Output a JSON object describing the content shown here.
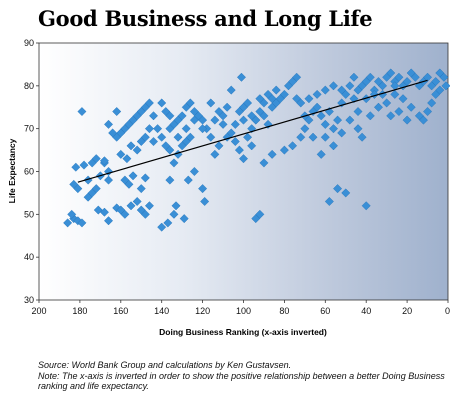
{
  "chart_data": {
    "type": "scatter",
    "title": "Good Business and Long Life",
    "xlabel": "Doing Business Ranking (x-axis inverted)",
    "ylabel": "Life Expectancy",
    "xlim": [
      200,
      0
    ],
    "ylim": [
      30,
      90
    ],
    "x_ticks": [
      200,
      180,
      160,
      140,
      120,
      100,
      80,
      60,
      40,
      20,
      0
    ],
    "y_ticks": [
      30,
      40,
      50,
      60,
      70,
      80,
      90
    ],
    "x_inverted": true,
    "grid": false,
    "background": "gradient-white-to-blue",
    "marker": "diamond",
    "marker_color": "#3a8fd6",
    "trendline": {
      "x": [
        181,
        10
      ],
      "y": [
        57.5,
        81.3
      ],
      "color": "#000000"
    },
    "points": [
      [
        186,
        48
      ],
      [
        183,
        49
      ],
      [
        181,
        48.5
      ],
      [
        179,
        48
      ],
      [
        184,
        50
      ],
      [
        181,
        56
      ],
      [
        176,
        54
      ],
      [
        174,
        55
      ],
      [
        171,
        51
      ],
      [
        168,
        50.5
      ],
      [
        166,
        48.5
      ],
      [
        176,
        58
      ],
      [
        172,
        56
      ],
      [
        170,
        59
      ],
      [
        168,
        62
      ],
      [
        166,
        60
      ],
      [
        182,
        61
      ],
      [
        178,
        61.5
      ],
      [
        174,
        62
      ],
      [
        172,
        63
      ],
      [
        183,
        57
      ],
      [
        179,
        74
      ],
      [
        168,
        62.5
      ],
      [
        166,
        58
      ],
      [
        162,
        51.5
      ],
      [
        160,
        51
      ],
      [
        158,
        50
      ],
      [
        155,
        52
      ],
      [
        152,
        53
      ],
      [
        150,
        51
      ],
      [
        148,
        50
      ],
      [
        146,
        52
      ],
      [
        158,
        58
      ],
      [
        156,
        57
      ],
      [
        154,
        59
      ],
      [
        150,
        56
      ],
      [
        148,
        58.5
      ],
      [
        160,
        64
      ],
      [
        157,
        63
      ],
      [
        155,
        66
      ],
      [
        152,
        65
      ],
      [
        150,
        67
      ],
      [
        148,
        68
      ],
      [
        146,
        70
      ],
      [
        144,
        73
      ],
      [
        162,
        68
      ],
      [
        160,
        69
      ],
      [
        158,
        70
      ],
      [
        156,
        71
      ],
      [
        154,
        72
      ],
      [
        164,
        69
      ],
      [
        166,
        71
      ],
      [
        162,
        74
      ],
      [
        152,
        73
      ],
      [
        150,
        74
      ],
      [
        148,
        75
      ],
      [
        146,
        76
      ],
      [
        140,
        76
      ],
      [
        138,
        74
      ],
      [
        136,
        73
      ],
      [
        134,
        71
      ],
      [
        132,
        72
      ],
      [
        130,
        73
      ],
      [
        128,
        75
      ],
      [
        126,
        76
      ],
      [
        124,
        74
      ],
      [
        122,
        73
      ],
      [
        120,
        72
      ],
      [
        118,
        70
      ],
      [
        116,
        68
      ],
      [
        114,
        72
      ],
      [
        112,
        74
      ],
      [
        110,
        73
      ],
      [
        108,
        75
      ],
      [
        106,
        79
      ],
      [
        140,
        47
      ],
      [
        137,
        48
      ],
      [
        134,
        50
      ],
      [
        133,
        52
      ],
      [
        129,
        49
      ],
      [
        127,
        58
      ],
      [
        124,
        60
      ],
      [
        120,
        56
      ],
      [
        119,
        53
      ],
      [
        136,
        58
      ],
      [
        134,
        62
      ],
      [
        132,
        64
      ],
      [
        130,
        66
      ],
      [
        128,
        67
      ],
      [
        126,
        68
      ],
      [
        140,
        68
      ],
      [
        138,
        66
      ],
      [
        136,
        65
      ],
      [
        142,
        70
      ],
      [
        144,
        67
      ],
      [
        104,
        67
      ],
      [
        102,
        65
      ],
      [
        100,
        63
      ],
      [
        98,
        68
      ],
      [
        96,
        70
      ],
      [
        94,
        72
      ],
      [
        92,
        74
      ],
      [
        90,
        73
      ],
      [
        88,
        71
      ],
      [
        86,
        75
      ],
      [
        84,
        76
      ],
      [
        82,
        77
      ],
      [
        80,
        78
      ],
      [
        78,
        80
      ],
      [
        76,
        81
      ],
      [
        74,
        82
      ],
      [
        102,
        74
      ],
      [
        100,
        75
      ],
      [
        98,
        76
      ],
      [
        96,
        73
      ],
      [
        94,
        72
      ],
      [
        92,
        77
      ],
      [
        90,
        76
      ],
      [
        88,
        78
      ],
      [
        86,
        77
      ],
      [
        84,
        79
      ],
      [
        101,
        82
      ],
      [
        70,
        73
      ],
      [
        68,
        72
      ],
      [
        66,
        74
      ],
      [
        64,
        75
      ],
      [
        62,
        73
      ],
      [
        60,
        71
      ],
      [
        58,
        74
      ],
      [
        56,
        70
      ],
      [
        54,
        72
      ],
      [
        52,
        76
      ],
      [
        50,
        78
      ],
      [
        48,
        80
      ],
      [
        46,
        77
      ],
      [
        44,
        74
      ],
      [
        42,
        80
      ],
      [
        40,
        81
      ],
      [
        38,
        82
      ],
      [
        36,
        79
      ],
      [
        34,
        81
      ],
      [
        32,
        80
      ],
      [
        30,
        82
      ],
      [
        28,
        83
      ],
      [
        26,
        81
      ],
      [
        24,
        82
      ],
      [
        22,
        80
      ],
      [
        20,
        81
      ],
      [
        18,
        83
      ],
      [
        16,
        82
      ],
      [
        14,
        80
      ],
      [
        12,
        81
      ],
      [
        10,
        82
      ],
      [
        8,
        80
      ],
      [
        6,
        81
      ],
      [
        4,
        83
      ],
      [
        2,
        82
      ],
      [
        1,
        80
      ],
      [
        80,
        65
      ],
      [
        76,
        66
      ],
      [
        72,
        68
      ],
      [
        70,
        70
      ],
      [
        66,
        68
      ],
      [
        62,
        64
      ],
      [
        58,
        53
      ],
      [
        54,
        56
      ],
      [
        50,
        55
      ],
      [
        40,
        52
      ],
      [
        94,
        49
      ],
      [
        92,
        50
      ],
      [
        90,
        62
      ],
      [
        86,
        64
      ],
      [
        60,
        68
      ],
      [
        56,
        66
      ],
      [
        52,
        69
      ],
      [
        48,
        72
      ],
      [
        44,
        70
      ],
      [
        42,
        68
      ],
      [
        38,
        73
      ],
      [
        34,
        75
      ],
      [
        30,
        76
      ],
      [
        26,
        78
      ],
      [
        22,
        77
      ],
      [
        18,
        75
      ],
      [
        14,
        73
      ],
      [
        10,
        74
      ],
      [
        6,
        78
      ],
      [
        4,
        79
      ],
      [
        36,
        78
      ],
      [
        28,
        73
      ],
      [
        24,
        74
      ],
      [
        20,
        72
      ],
      [
        12,
        72
      ],
      [
        8,
        76
      ],
      [
        116,
        76
      ],
      [
        110,
        71
      ],
      [
        106,
        69
      ],
      [
        104,
        71
      ],
      [
        100,
        72
      ],
      [
        96,
        66
      ],
      [
        114,
        64
      ],
      [
        112,
        66
      ],
      [
        108,
        68
      ],
      [
        120,
        70
      ],
      [
        124,
        72
      ],
      [
        128,
        70
      ],
      [
        132,
        68
      ],
      [
        136,
        70
      ],
      [
        74,
        77
      ],
      [
        72,
        76
      ],
      [
        68,
        77
      ],
      [
        64,
        78
      ],
      [
        60,
        79
      ],
      [
        56,
        80
      ],
      [
        52,
        79
      ],
      [
        46,
        82
      ],
      [
        44,
        79
      ],
      [
        40,
        77
      ],
      [
        32,
        78
      ],
      [
        26,
        80
      ]
    ],
    "footnote": {
      "source": "Source: World Bank Group and calculations by Ken Gustavsen.",
      "note": "Note: The x-axis is inverted in order to show the positive relationship between a better Doing Business ranking and life expectancy."
    }
  }
}
